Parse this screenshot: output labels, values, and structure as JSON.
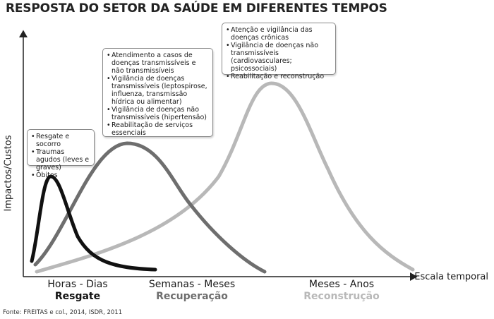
{
  "title": "RESPOSTA DO SETOR DA SAÚDE EM DIFERENTES TEMPOS",
  "axes": {
    "y_label": "Impactos/Custos",
    "x_label": "Escala temporal"
  },
  "phases": [
    {
      "time": "Horas - Dias",
      "name": "Resgate",
      "color": "#111111"
    },
    {
      "time": "Semanas - Meses",
      "name": "Recuperação",
      "color": "#6e6e6e"
    },
    {
      "time": "Meses - Anos",
      "name": "Reconstrução",
      "color": "#b8b8b8"
    }
  ],
  "boxes": [
    {
      "items": [
        "Resgate e socorro",
        "Traumas agudos (leves e graves)",
        "Óbitos"
      ]
    },
    {
      "items": [
        "Atendimento a casos de doenças transmissíveis e não transmissíveis",
        "Vigilância de doenças transmissíveis (leptospirose, influenza, transmissão hídrica ou alimentar)",
        "Vigilância de doenças não transmissíveis (hipertensão)",
        "Reabilitação de serviços essenciais"
      ]
    },
    {
      "items": [
        "Atenção e vigilância das doenças crônicas",
        "Vigilância de doenças não transmissíveis (cardiovasculares; psicossociais)",
        "Reabilitação e reconstrução"
      ]
    }
  ],
  "source": "Fonte: FREITAS e col., 2014, ISDR, 2011"
}
